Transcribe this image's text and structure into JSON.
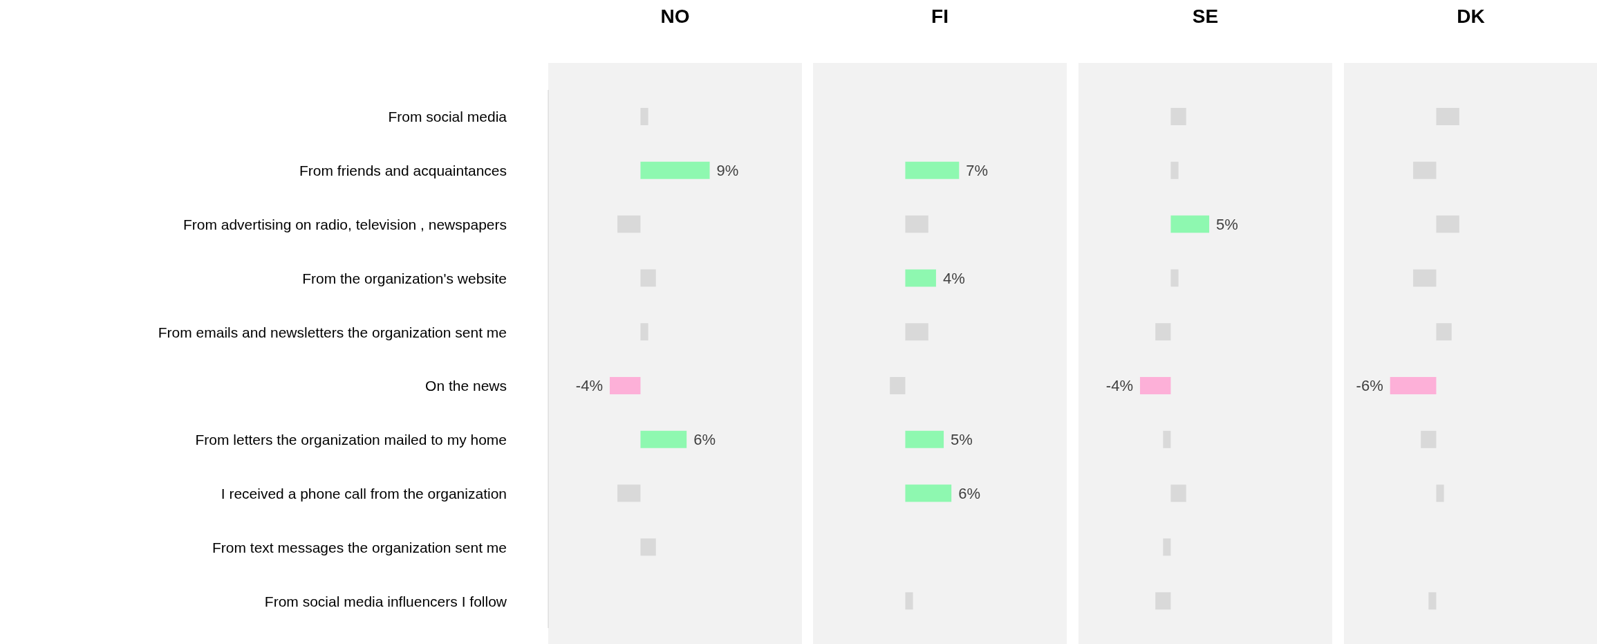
{
  "chart_data": [
    {
      "type": "bar",
      "orientation": "horizontal",
      "title": "NO",
      "tick_labels": "y",
      "categories": [
        "From social media",
        "From friends and acquaintances",
        "From advertising on radio, television , newspapers",
        "From the organization's website",
        "From emails and newsletters the organization sent me",
        "On the news",
        "From letters the organization mailed to my home",
        "I received a phone call from the organization",
        "From text messages the organization sent me",
        "From social media influencers I follow"
      ],
      "values": [
        1,
        9,
        -3,
        2,
        1,
        -4,
        6,
        -3,
        2,
        null
      ],
      "colors": [
        "#d9d9d9",
        "#8ef8b0",
        "#d9d9d9",
        "#d9d9d9",
        "#d9d9d9",
        "#fdb0d8",
        "#8ef8b0",
        "#d9d9d9",
        "#d9d9d9",
        "#d9d9d9"
      ],
      "value_labels": [
        null,
        "9%",
        null,
        null,
        null,
        "-4%",
        "6%",
        null,
        null,
        null
      ],
      "xlim": [
        -12,
        21
      ]
    },
    {
      "type": "bar",
      "orientation": "horizontal",
      "title": "FI",
      "tick_labels": false,
      "categories": [
        null,
        null,
        null,
        null,
        null,
        null,
        null,
        null,
        null,
        null
      ],
      "values": [
        null,
        7,
        3,
        4,
        3,
        -2,
        5,
        6,
        null,
        1
      ],
      "colors": [
        "#d9d9d9",
        "#8ef8b0",
        "#d9d9d9",
        "#8ef8b0",
        "#d9d9d9",
        "#d9d9d9",
        "#8ef8b0",
        "#8ef8b0",
        "#d9d9d9",
        "#d9d9d9"
      ],
      "value_labels": [
        null,
        "7%",
        null,
        "4%",
        null,
        null,
        "5%",
        "6%",
        null,
        null
      ],
      "xlim": [
        -12,
        21
      ]
    },
    {
      "type": "bar",
      "orientation": "horizontal",
      "title": "SE",
      "tick_labels": false,
      "categories": [
        null,
        null,
        null,
        null,
        null,
        null,
        null,
        null,
        null,
        null
      ],
      "values": [
        2,
        1,
        5,
        1,
        -2,
        -4,
        -1,
        2,
        -1,
        -2
      ],
      "colors": [
        "#d9d9d9",
        "#d9d9d9",
        "#8ef8b0",
        "#d9d9d9",
        "#d9d9d9",
        "#fdb0d8",
        "#d9d9d9",
        "#d9d9d9",
        "#d9d9d9",
        "#d9d9d9"
      ],
      "value_labels": [
        null,
        null,
        "5%",
        null,
        null,
        "-4%",
        null,
        null,
        null,
        null
      ],
      "xlim": [
        -12,
        21
      ]
    },
    {
      "type": "bar",
      "orientation": "horizontal",
      "title": "DK",
      "tick_labels": false,
      "categories": [
        null,
        null,
        null,
        null,
        null,
        null,
        null,
        null,
        null,
        null
      ],
      "values": [
        3,
        -3,
        3,
        -3,
        2,
        -6,
        -2,
        1,
        null,
        -1
      ],
      "colors": [
        "#d9d9d9",
        "#d9d9d9",
        "#d9d9d9",
        "#d9d9d9",
        "#d9d9d9",
        "#fdb0d8",
        "#d9d9d9",
        "#d9d9d9",
        "#d9d9d9",
        "#d9d9d9"
      ],
      "value_labels": [
        null,
        null,
        null,
        null,
        null,
        "-6%",
        null,
        null,
        null,
        null
      ],
      "xlim": [
        -12,
        21
      ]
    }
  ]
}
